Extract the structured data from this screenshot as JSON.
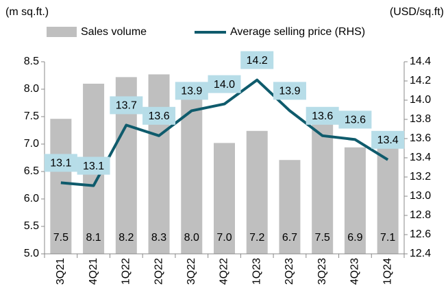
{
  "chart_data": {
    "type": "bar_line",
    "y_label": "(m sq.ft.)",
    "y2_label": "(USD/sq.ft)",
    "categories": [
      "3Q21",
      "4Q21",
      "1Q22",
      "2Q22",
      "3Q22",
      "4Q22",
      "1Q23",
      "2Q23",
      "3Q23",
      "4Q23",
      "1Q24"
    ],
    "series": [
      {
        "name": "Sales volume",
        "type": "bar",
        "color": "#bfbfbf",
        "values": [
          7.46,
          8.1,
          8.22,
          8.27,
          7.98,
          7.02,
          7.24,
          6.71,
          7.5,
          6.94,
          7.08
        ],
        "value_labels": [
          "7.5",
          "8.1",
          "8.2",
          "8.3",
          "8.0",
          "7.0",
          "7.2",
          "6.7",
          "7.5",
          "6.9",
          "7.1"
        ]
      },
      {
        "name": "Average selling price (RHS)",
        "type": "line",
        "axis": "y2",
        "color": "#0f5b6c",
        "label_box_color": "#b7dde8",
        "values": [
          13.14,
          13.11,
          13.74,
          13.63,
          13.89,
          13.96,
          14.21,
          13.89,
          13.63,
          13.59,
          13.38
        ],
        "value_labels": [
          "13.1",
          "13.1",
          "13.7",
          "13.6",
          "13.9",
          "14.0",
          "14.2",
          "13.9",
          "13.6",
          "13.6",
          "13.4"
        ]
      }
    ],
    "ylim": [
      5,
      8.5
    ],
    "yticks": [
      {
        "value": 5,
        "label": "5.0"
      },
      5.5,
      {
        "value": 6,
        "label": "6.0"
      },
      6.5,
      {
        "value": 7,
        "label": "7.0"
      },
      7.5,
      {
        "value": 8,
        "label": "8.0"
      },
      8.5
    ],
    "y2lim": [
      12.4,
      14.4
    ],
    "y2ticks": [
      12.4,
      12.6,
      12.8,
      {
        "value": 13,
        "label": "13.0"
      },
      13.2,
      13.4,
      13.6,
      13.8,
      {
        "value": 14,
        "label": "14.0"
      },
      14.2,
      14.4
    ],
    "grid": false
  }
}
